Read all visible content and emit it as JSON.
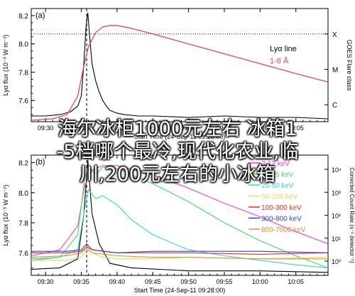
{
  "overlay": {
    "line1": "海尔冰柜1000元左右 冰箱1",
    "line2": "-5档哪个最冷,现代化农业,临",
    "line3": "川,200元左右的小冰箱"
  },
  "colors": {
    "lya": "#000000",
    "goes": "#e04a4a",
    "e_3_12": "#ff3ad4",
    "e_12_25": "#3fdc5a",
    "e_25_50": "#33d6d6",
    "e_50_100": "#e8d85a",
    "e_100_300": "#e03030",
    "e_300_800": "#3344cc",
    "e_800_7000": "#e0902a"
  },
  "chart_data": [
    {
      "type": "line",
      "panel_label": "(a)",
      "ylabel": "Lyα flux (10⁻³ W m⁻²)",
      "ylim": [
        7.45,
        8.25
      ],
      "y_ticks": [
        7.6,
        7.8,
        8.0,
        8.2
      ],
      "xlim": [
        "09:28:00",
        "10:09:30"
      ],
      "x_tick_labels": [
        "09:30",
        "09:35",
        "09:40",
        "09:45",
        "09:50",
        "09:55",
        "10:00",
        "10:05"
      ],
      "xlabel": "Start Time (24-Sep-11 09:28:00)",
      "right_axis": {
        "title": "GOES Flare class",
        "labels": [
          "X",
          "M",
          "C"
        ]
      },
      "legend": [
        "Lyα line",
        "1-8 Å"
      ],
      "vline_time": "09:35:45",
      "hline_y": 8.07,
      "series": [
        {
          "name": "Lyα line",
          "t": [
            "09:28:00",
            "09:30:00",
            "09:32:00",
            "09:33:30",
            "09:34:30",
            "09:35:00",
            "09:35:20",
            "09:35:40",
            "09:35:55",
            "09:36:10",
            "09:36:30",
            "09:37:00",
            "09:37:30",
            "09:38:00",
            "09:38:30",
            "09:39:00",
            "09:40:00",
            "09:41:00",
            "09:43:00",
            "09:45:00",
            "09:50:00",
            "09:55:00",
            "10:00:00",
            "10:05:00",
            "10:09:30"
          ],
          "y": [
            7.49,
            7.49,
            7.5,
            7.52,
            7.56,
            7.63,
            7.85,
            8.12,
            8.22,
            8.05,
            7.86,
            7.74,
            7.66,
            7.6,
            7.56,
            7.53,
            7.51,
            7.5,
            7.49,
            7.49,
            7.48,
            7.49,
            7.48,
            7.48,
            7.47
          ]
        },
        {
          "name": "1-8 Å",
          "t": [
            "09:28:00",
            "09:31:00",
            "09:33:00",
            "09:34:30",
            "09:35:15",
            "09:36:00",
            "09:37:00",
            "09:38:00",
            "09:39:00",
            "09:40:00",
            "09:42:00",
            "09:45:00",
            "09:50:00",
            "09:55:00",
            "10:00:00",
            "10:05:00",
            "10:09:30"
          ],
          "y": [
            7.46,
            7.47,
            7.5,
            7.63,
            7.82,
            7.98,
            8.08,
            8.12,
            8.13,
            8.13,
            8.11,
            8.07,
            8.0,
            7.93,
            7.86,
            7.79,
            7.73
          ]
        }
      ]
    },
    {
      "type": "line",
      "panel_label": "(b)",
      "ylabel": "Lyα flux (10⁻³ W m⁻²)",
      "ylim": [
        7.45,
        8.25
      ],
      "y_ticks": [
        7.6,
        7.8,
        8.0,
        8.2
      ],
      "xlim": [
        "09:28:00",
        "10:09:30"
      ],
      "x_tick_labels": [
        "09:30",
        "09:35",
        "09:40",
        "09:45",
        "09:50",
        "09:55",
        "10:00",
        "10:05"
      ],
      "xlabel": "Start Time (24-Sep-11 09:28:00)",
      "right_axis": {
        "title": "Corrected Count Rate (s⁻¹ detector⁻¹)",
        "labels": [
          "10⁴",
          "10³",
          "10²",
          "10¹",
          "10⁰"
        ]
      },
      "legend": [
        "3-12 keV",
        "12-25 keV",
        "25-50 keV",
        "50-100 keV",
        "100-300 keV",
        "300-800 keV",
        "800-7000 keV"
      ],
      "vline_time": "09:35:45",
      "series": [
        {
          "name": "Lyα",
          "t": [
            "09:28:00",
            "09:32:00",
            "09:34:30",
            "09:35:20",
            "09:35:55",
            "09:36:30",
            "09:37:30",
            "09:39:00",
            "09:42:00",
            "09:50:00",
            "10:00:00",
            "10:09:30"
          ],
          "y": [
            7.49,
            7.5,
            7.56,
            7.85,
            8.22,
            7.86,
            7.66,
            7.53,
            7.5,
            7.48,
            7.48,
            7.47
          ]
        },
        {
          "name": "3-12 keV",
          "t": [
            "09:28:00",
            "09:32:00",
            "09:34:30",
            "09:35:30",
            "09:36:30",
            "09:38:00",
            "09:40:00",
            "09:45:00",
            "09:50:00",
            "09:55:00",
            "10:00:00",
            "10:05:00",
            "10:09:30"
          ],
          "y": [
            7.58,
            7.62,
            7.78,
            8.05,
            8.15,
            8.18,
            8.18,
            8.12,
            8.03,
            7.93,
            7.84,
            7.74,
            7.66
          ]
        },
        {
          "name": "12-25 keV",
          "t": [
            "09:28:00",
            "09:32:00",
            "09:34:30",
            "09:35:30",
            "09:36:00",
            "09:37:00",
            "09:38:00",
            "09:40:00",
            "09:45:00",
            "09:50:00",
            "09:55:00",
            "10:00:00",
            "10:05:00",
            "10:09:30"
          ],
          "y": [
            7.55,
            7.57,
            7.72,
            8.1,
            8.18,
            8.12,
            8.17,
            8.16,
            8.06,
            7.94,
            7.8,
            7.68,
            7.58,
            7.5
          ]
        },
        {
          "name": "25-50 keV",
          "t": [
            "09:28:00",
            "09:32:00",
            "09:34:30",
            "09:35:30",
            "09:36:00",
            "09:37:00",
            "09:38:00",
            "09:40:00",
            "09:42:00",
            "09:45:00",
            "09:50:00",
            "09:55:00",
            "10:00:00",
            "10:05:00",
            "10:09:30"
          ],
          "y": [
            7.56,
            7.57,
            7.62,
            7.9,
            8.02,
            7.96,
            7.98,
            7.92,
            7.82,
            7.72,
            7.62,
            7.58,
            7.55,
            7.52,
            7.5
          ]
        },
        {
          "name": "50-100 keV",
          "t": [
            "09:28:00",
            "09:33:00",
            "09:35:00",
            "09:35:45",
            "09:36:30",
            "09:38:00",
            "09:40:00",
            "09:45:00",
            "09:50:00",
            "10:00:00",
            "10:09:30"
          ],
          "y": [
            7.55,
            7.55,
            7.57,
            7.62,
            7.6,
            7.57,
            7.56,
            7.56,
            7.57,
            7.56,
            7.57
          ]
        },
        {
          "name": "100-300 keV",
          "t": [
            "09:28:00",
            "09:33:00",
            "09:35:00",
            "09:35:45",
            "09:36:30",
            "09:38:00",
            "09:40:00",
            "09:45:00",
            "09:50:00",
            "10:00:00",
            "10:09:30"
          ],
          "y": [
            7.6,
            7.6,
            7.61,
            7.64,
            7.62,
            7.61,
            7.6,
            7.6,
            7.6,
            7.59,
            7.6
          ]
        },
        {
          "name": "300-800 keV",
          "t": [
            "09:28:00",
            "09:33:00",
            "09:35:00",
            "09:35:45",
            "09:36:30",
            "09:40:00",
            "09:45:00",
            "09:50:00",
            "10:00:00",
            "10:09:30"
          ],
          "y": [
            7.61,
            7.61,
            7.62,
            7.66,
            7.62,
            7.6,
            7.61,
            7.61,
            7.61,
            7.6
          ]
        },
        {
          "name": "800-7000 keV",
          "t": [
            "09:28:00",
            "09:33:00",
            "09:35:00",
            "09:35:45",
            "09:36:30",
            "09:40:00",
            "09:45:00",
            "09:50:00",
            "10:00:00",
            "10:09:30"
          ],
          "y": [
            7.57,
            7.58,
            7.6,
            7.63,
            7.6,
            7.58,
            7.57,
            7.57,
            7.56,
            7.56
          ]
        }
      ]
    }
  ]
}
